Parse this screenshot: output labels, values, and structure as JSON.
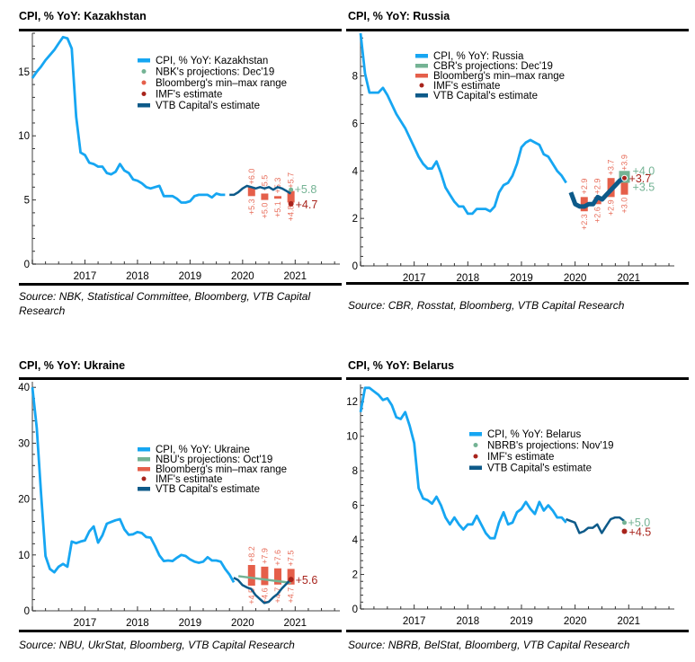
{
  "colors": {
    "cpi": "#16a6f2",
    "projection": "#74b394",
    "bloomberg": "#e55f4a",
    "imf": "#a8241c",
    "vtb": "#0d5a89",
    "axis": "#808080"
  },
  "chart_data": [
    {
      "id": "kazakhstan",
      "type": "line",
      "title": "CPI, % YoY: Kazakhstan",
      "source": "Source: NBK, Statistical Committee, Bloomberg, VTB Capital Research",
      "xlabel": "",
      "ylabel": "",
      "xlim": [
        2016.0,
        2021.85
      ],
      "ylim": [
        0,
        18
      ],
      "x_ticks": [
        "2017",
        "2018",
        "2019",
        "2020",
        "2021"
      ],
      "y_ticks": [
        0,
        5,
        10,
        15
      ],
      "legend": [
        "CPI, % YoY: Kazakhstan",
        "NBK's projections: Dec'19",
        "Bloomberg's min–max range",
        "IMF's estimate",
        "VTB Capital's estimate"
      ],
      "legend_kinds": [
        "line-cpi",
        "dot-projection",
        "dot-bloomberg",
        "dot-imf",
        "line-vtb"
      ],
      "legend_position": "top-right",
      "cpi": {
        "start": 2016.0,
        "values": [
          14.5,
          15.0,
          15.4,
          15.9,
          16.3,
          16.7,
          17.2,
          17.7,
          17.6,
          16.8,
          11.5,
          8.7,
          8.5,
          7.9,
          7.8,
          7.6,
          7.6,
          7.1,
          7.0,
          7.2,
          7.8,
          7.3,
          7.1,
          6.6,
          6.5,
          6.3,
          6.0,
          5.9,
          6.0,
          6.1,
          5.3,
          5.3,
          5.3,
          5.1,
          4.8,
          4.8,
          4.9,
          5.3,
          5.4,
          5.4,
          5.4,
          5.2,
          5.5,
          5.4,
          5.4
        ]
      },
      "vtb": {
        "start": 2019.75,
        "values": [
          5.4,
          5.4,
          5.6,
          5.9,
          6.1,
          6.0,
          5.9,
          6.0,
          5.9,
          6.0,
          5.8,
          6.0,
          5.9,
          5.7,
          5.5
        ]
      },
      "bloomberg": [
        {
          "x": 2020.17,
          "min": 5.3,
          "max": 6.0,
          "min_label": "+5.3",
          "max_label": "+6.0"
        },
        {
          "x": 2020.42,
          "min": 5.0,
          "max": 5.5,
          "min_label": "+5.0",
          "max_label": "+5.5"
        },
        {
          "x": 2020.67,
          "min": 5.1,
          "max": 5.3,
          "min_label": "+5.1",
          "max_label": "+5.3"
        },
        {
          "x": 2020.92,
          "min": 4.8,
          "max": 5.7,
          "min_label": "+4.8",
          "max_label": "+5.7"
        }
      ],
      "projection": {
        "type": "dot",
        "x": 2020.92,
        "value": 5.8,
        "label": "+5.8"
      },
      "imf": {
        "x": 2020.92,
        "value": 4.7,
        "label": "+4.7"
      }
    },
    {
      "id": "russia",
      "type": "line",
      "title": "CPI, % YoY: Russia",
      "source": "Source: CBR, Rosstat, Bloomberg, VTB Capital Research",
      "xlabel": "",
      "ylabel": "",
      "xlim": [
        2016.0,
        2021.85
      ],
      "ylim": [
        0,
        9.8
      ],
      "x_ticks": [
        "2017",
        "2018",
        "2019",
        "2020",
        "2021"
      ],
      "y_ticks": [
        0,
        2,
        4,
        6,
        8
      ],
      "legend": [
        "CPI, % YoY: Russia",
        "CBR's projections: Dec'19",
        "Bloomberg's min–max range",
        "IMF's estimate",
        "VTB Capital's estimate"
      ],
      "legend_kinds": [
        "line-cpi",
        "bar-projection",
        "bar-bloomberg",
        "dot-imf",
        "line-vtb"
      ],
      "legend_position": "top-right",
      "cpi": {
        "start": 2016.0,
        "values": [
          9.8,
          8.1,
          7.3,
          7.3,
          7.3,
          7.5,
          7.2,
          6.8,
          6.4,
          6.1,
          5.8,
          5.4,
          5.0,
          4.6,
          4.3,
          4.1,
          4.1,
          4.4,
          3.9,
          3.3,
          3.0,
          2.7,
          2.5,
          2.5,
          2.2,
          2.2,
          2.4,
          2.4,
          2.4,
          2.3,
          2.5,
          3.1,
          3.4,
          3.5,
          3.8,
          4.3,
          5.0,
          5.2,
          5.3,
          5.2,
          5.1,
          4.7,
          4.6,
          4.3,
          4.0,
          3.8,
          3.5
        ]
      },
      "vtb": {
        "start": 2019.92,
        "values": [
          3.1,
          2.6,
          2.5,
          2.5,
          2.6,
          2.6,
          2.9,
          2.8,
          3.0,
          3.2,
          3.4,
          3.6,
          3.7
        ]
      },
      "bloomberg": [
        {
          "x": 2020.17,
          "min": 2.3,
          "max": 2.9,
          "min_label": "+2.3",
          "max_label": "+2.9"
        },
        {
          "x": 2020.42,
          "min": 2.6,
          "max": 2.9,
          "min_label": "+2.6",
          "max_label": "+2.9"
        },
        {
          "x": 2020.67,
          "min": 2.9,
          "max": 3.7,
          "min_label": "+2.9",
          "max_label": "+3.7"
        },
        {
          "x": 2020.92,
          "min": 3.0,
          "max": 3.9,
          "min_label": "+3.0",
          "max_label": "+3.9"
        }
      ],
      "projection": {
        "type": "range",
        "x": 2020.92,
        "min": 3.5,
        "max": 4.0,
        "min_label": "+3.5",
        "max_label": "+4.0"
      },
      "imf": {
        "x": 2020.92,
        "value": 3.7,
        "label": "+3.7"
      }
    },
    {
      "id": "ukraine",
      "type": "line",
      "title": "CPI, % YoY: Ukraine",
      "source": "Source: NBU, UkrStat, Bloomberg, VTB Capital Research",
      "xlabel": "",
      "ylabel": "",
      "xlim": [
        2016.0,
        2021.85
      ],
      "ylim": [
        0,
        41
      ],
      "x_ticks": [
        "2017",
        "2018",
        "2019",
        "2020",
        "2021"
      ],
      "y_ticks": [
        0,
        10,
        20,
        30,
        40
      ],
      "legend": [
        "CPI, % YoY: Ukraine",
        "NBU's projections: Oct'19",
        "Bloomberg's min–max range",
        "IMF's estimate",
        "VTB Capital's estimate"
      ],
      "legend_kinds": [
        "line-cpi",
        "bar-projection",
        "bar-bloomberg",
        "dot-imf",
        "line-vtb"
      ],
      "legend_position": "center-right",
      "cpi": {
        "start": 2016.0,
        "values": [
          40.0,
          32.7,
          20.9,
          9.8,
          7.5,
          6.9,
          7.9,
          8.4,
          7.9,
          12.4,
          12.1,
          12.4,
          12.6,
          14.2,
          15.1,
          12.2,
          13.5,
          15.6,
          15.9,
          16.2,
          16.4,
          14.6,
          13.6,
          13.7,
          14.1,
          13.9,
          13.2,
          13.1,
          11.6,
          9.9,
          8.9,
          9.0,
          8.9,
          9.5,
          10.0,
          9.8,
          9.2,
          8.8,
          8.6,
          8.8,
          9.6,
          9.0,
          9.0,
          8.8,
          7.5,
          6.5,
          5.1
        ]
      },
      "vtb": {
        "start": 2019.83,
        "values": [
          5.9,
          5.5,
          4.6,
          4.2,
          3.9,
          2.8,
          2.1,
          1.4,
          1.6,
          2.4,
          3.0,
          4.0,
          4.8,
          5.6
        ]
      },
      "bloomberg": [
        {
          "x": 2020.17,
          "min": 4.5,
          "max": 8.2,
          "min_label": "+4.5",
          "max_label": "+8.2"
        },
        {
          "x": 2020.42,
          "min": 4.6,
          "max": 7.9,
          "min_label": "+4.6",
          "max_label": "+7.9"
        },
        {
          "x": 2020.67,
          "min": 4.7,
          "max": 7.6,
          "min_label": "+4.7",
          "max_label": "+7.6"
        },
        {
          "x": 2020.92,
          "min": 4.7,
          "max": 7.5,
          "min_label": "+4.7",
          "max_label": "+7.5"
        }
      ],
      "projection": {
        "type": "line",
        "start": 2019.92,
        "end": 2020.92,
        "from": 6.2,
        "to": 5.0
      },
      "imf": {
        "x": 2020.92,
        "value": 5.6,
        "label": "+5.6"
      }
    },
    {
      "id": "belarus",
      "type": "line",
      "title": "CPI, % YoY: Belarus",
      "source": "Source: NBRB, BelStat, Bloomberg, VTB Capital Research",
      "xlabel": "",
      "ylabel": "",
      "xlim": [
        2016.0,
        2021.85
      ],
      "ylim": [
        0,
        13
      ],
      "x_ticks": [
        "2017",
        "2018",
        "2019",
        "2020",
        "2021"
      ],
      "y_ticks": [
        0,
        2,
        4,
        6,
        8,
        10,
        12
      ],
      "legend": [
        "CPI, % YoY: Belarus",
        "NBRB's projections: Nov'19",
        "IMF's estimate",
        "VTB Capital's estimate"
      ],
      "legend_kinds": [
        "line-cpi",
        "dot-projection",
        "dot-imf",
        "line-vtb"
      ],
      "legend_position": "center-right",
      "cpi": {
        "start": 2016.0,
        "values": [
          11.4,
          12.8,
          12.8,
          12.6,
          12.4,
          12.1,
          12.2,
          11.8,
          11.1,
          11.0,
          11.4,
          10.6,
          9.6,
          7.0,
          6.4,
          6.3,
          6.1,
          6.5,
          6.0,
          5.3,
          4.9,
          5.3,
          4.9,
          4.6,
          4.9,
          4.9,
          5.4,
          4.9,
          4.4,
          4.1,
          4.1,
          5.0,
          5.6,
          4.9,
          5.0,
          5.6,
          5.8,
          6.2,
          5.8,
          5.5,
          6.2,
          5.7,
          6.0,
          5.7,
          5.3,
          5.3,
          5.0
        ]
      },
      "vtb": {
        "start": 2019.83,
        "values": [
          5.2,
          5.1,
          5.0,
          4.4,
          4.5,
          4.7,
          4.7,
          4.9,
          4.4,
          4.8,
          5.2,
          5.3,
          5.3,
          5.1
        ]
      },
      "bloomberg": [],
      "projection": {
        "type": "dot",
        "x": 2020.92,
        "value": 5.0,
        "label": "+5.0"
      },
      "imf": {
        "x": 2020.92,
        "value": 4.5,
        "label": "+4.5"
      }
    }
  ]
}
